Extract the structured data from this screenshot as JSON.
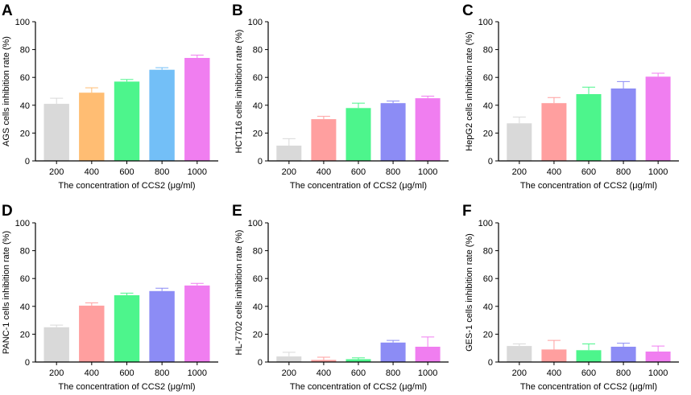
{
  "figure": {
    "colors": {
      "200": "#d9d9d9",
      "400": "#ff9f9f",
      "600": "#4df58c",
      "800": "#8c8cf5",
      "1000": "#f07ef0",
      "400_orange": "#ffbd73",
      "800_blue": "#73bff7"
    }
  },
  "chart_data": [
    {
      "type": "bar",
      "panel_label": "A",
      "categories": [
        "200",
        "400",
        "600",
        "800",
        "1000"
      ],
      "values": [
        41,
        49,
        57,
        65.5,
        74
      ],
      "errors": [
        4,
        3.5,
        1.5,
        1.5,
        2
      ],
      "bar_colors": [
        "#d9d9d9",
        "#ffbd73",
        "#4df58c",
        "#73bff7",
        "#f07ef0"
      ],
      "xlabel": "The concentration of CCS2 (μg/ml)",
      "ylabel": "AGS cells inhibition rate (%)",
      "ylim": [
        0,
        100
      ],
      "yticks": [
        "0",
        "20",
        "40",
        "60",
        "80",
        "100"
      ]
    },
    {
      "type": "bar",
      "panel_label": "B",
      "categories": [
        "200",
        "400",
        "600",
        "800",
        "1000"
      ],
      "values": [
        11,
        30,
        38,
        41.5,
        45
      ],
      "errors": [
        5,
        2,
        3.5,
        1.5,
        1.5
      ],
      "bar_colors": [
        "#d9d9d9",
        "#ff9f9f",
        "#4df58c",
        "#8c8cf5",
        "#f07ef0"
      ],
      "xlabel": "The concentration of CCS2 (μg/ml)",
      "ylabel": "HCT116 cells inhibition rate (%)",
      "ylim": [
        0,
        100
      ],
      "yticks": [
        "0",
        "20",
        "40",
        "60",
        "80",
        "100"
      ]
    },
    {
      "type": "bar",
      "panel_label": "C",
      "categories": [
        "200",
        "400",
        "600",
        "800",
        "1000"
      ],
      "values": [
        27,
        41.5,
        48,
        52,
        60.5
      ],
      "errors": [
        4.5,
        4,
        5,
        5,
        2.5
      ],
      "bar_colors": [
        "#d9d9d9",
        "#ff9f9f",
        "#4df58c",
        "#8c8cf5",
        "#f07ef0"
      ],
      "xlabel": "The concentration of CCS2 (μg/ml)",
      "ylabel": "HepG2 cells inhibition rate (%)",
      "ylim": [
        0,
        100
      ],
      "yticks": [
        "0",
        "20",
        "40",
        "60",
        "80",
        "100"
      ]
    },
    {
      "type": "bar",
      "panel_label": "D",
      "categories": [
        "200",
        "400",
        "600",
        "800",
        "1000"
      ],
      "values": [
        25,
        40.5,
        48,
        51,
        55
      ],
      "errors": [
        1.5,
        2,
        1.5,
        2,
        1.5
      ],
      "bar_colors": [
        "#d9d9d9",
        "#ff9f9f",
        "#4df58c",
        "#8c8cf5",
        "#f07ef0"
      ],
      "xlabel": "The concentration of CCS2 (μg/ml)",
      "ylabel": "PANC-1 cells inhibition rate (%)",
      "ylim": [
        0,
        100
      ],
      "yticks": [
        "0",
        "20",
        "40",
        "60",
        "80",
        "100"
      ]
    },
    {
      "type": "bar",
      "panel_label": "E",
      "categories": [
        "200",
        "400",
        "600",
        "800",
        "1000"
      ],
      "values": [
        4,
        1.5,
        2,
        14,
        11
      ],
      "errors": [
        3,
        2,
        1,
        1.5,
        7
      ],
      "bar_colors": [
        "#d9d9d9",
        "#ff9f9f",
        "#4df58c",
        "#8c8cf5",
        "#f07ef0"
      ],
      "xlabel": "The concentration of CCS2 (μg/ml)",
      "ylabel": "HL-7702 cells inhibition rate (%)",
      "ylim": [
        0,
        100
      ],
      "yticks": [
        "0",
        "20",
        "40",
        "60",
        "80",
        "100"
      ]
    },
    {
      "type": "bar",
      "panel_label": "F",
      "categories": [
        "200",
        "400",
        "600",
        "800",
        "1000"
      ],
      "values": [
        11.5,
        9,
        8.5,
        11,
        7.5
      ],
      "errors": [
        1.5,
        6.5,
        4.5,
        2.5,
        4
      ],
      "bar_colors": [
        "#d9d9d9",
        "#ff9f9f",
        "#4df58c",
        "#8c8cf5",
        "#f07ef0"
      ],
      "xlabel": "The concentration of CCS2 (μg/ml)",
      "ylabel": "GES-1 cells inhibition rate (%)",
      "ylim": [
        0,
        100
      ],
      "yticks": [
        "0",
        "20",
        "40",
        "60",
        "80",
        "100"
      ]
    }
  ]
}
